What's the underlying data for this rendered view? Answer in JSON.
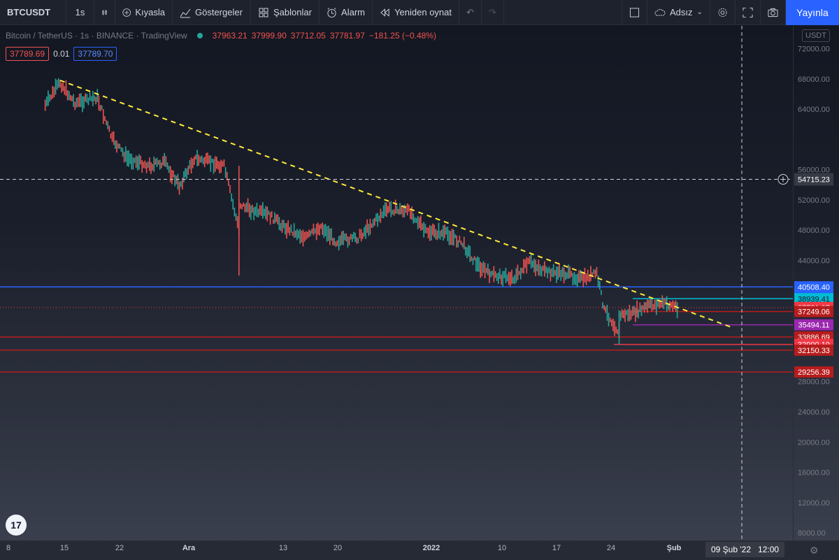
{
  "toolbar": {
    "symbol": "BTCUSDT",
    "interval": "1s",
    "compare_label": "Kıyasla",
    "indicators_label": "Göstergeler",
    "templates_label": "Şablonlar",
    "alarm_label": "Alarm",
    "replay_label": "Yeniden oynat",
    "layout_name": "Adsız",
    "publish_label": "Yayınla"
  },
  "legend": {
    "title": "Bitcoin / TetherUS · 1s · BINANCE · TradingView",
    "open": "37963.21",
    "high": "37999.90",
    "low": "37712.05",
    "close": "37781.97",
    "change": "−181.25 (−0.48%)"
  },
  "spread": {
    "sell": "37789.69",
    "spread": "0.01",
    "buy": "37789.70"
  },
  "currency_label": "USDT",
  "crosshair": {
    "price": "54715.23",
    "date": "09 Şub '22",
    "time": "12:00"
  },
  "price_axis": {
    "ticks": [
      "72000.00",
      "68000.00",
      "64000.00",
      "56000.00",
      "52000.00",
      "48000.00",
      "44000.00",
      "28000.00",
      "24000.00",
      "20000.00",
      "16000.00",
      "12000.00",
      "8000.00"
    ],
    "tick_values": [
      72000,
      68000,
      64000,
      56000,
      52000,
      48000,
      44000,
      28000,
      24000,
      20000,
      16000,
      12000,
      8000
    ]
  },
  "time_axis": {
    "labels": [
      "8",
      "15",
      "22",
      "Ara",
      "13",
      "20",
      "2022",
      "10",
      "17",
      "24",
      "Şub"
    ],
    "strong": [
      "Ara",
      "2022",
      "Şub"
    ]
  },
  "levels": [
    {
      "label": "40508.40",
      "value": 40508.4,
      "color": "#2962ff",
      "line": true,
      "start": "full"
    },
    {
      "label": "39349.69",
      "value": 39349.69,
      "color": "#2962ff",
      "line": false
    },
    {
      "label": "38939.41",
      "value": 38939.41,
      "color": "#00bcd4",
      "line": true,
      "start": "recent"
    },
    {
      "label": "37781.97",
      "value": 37781.97,
      "color": "#f23645",
      "line": false,
      "dotted": true
    },
    {
      "label": "37249.06",
      "value": 37249.06,
      "color": "#b71c1c",
      "line": true,
      "start": "recent"
    },
    {
      "label": "35494.11",
      "value": 35494.11,
      "color": "#9c27b0",
      "line": true,
      "start": "recent"
    },
    {
      "label": "33886.69",
      "value": 33886.69,
      "color": "#b71c1c",
      "line": true,
      "start": "full"
    },
    {
      "label": "32900.10",
      "value": 32900.1,
      "color": "#f23645",
      "line": true,
      "start": "recent2"
    },
    {
      "label": "32150.33",
      "value": 32150.33,
      "color": "#b71c1c",
      "line": true,
      "start": "full"
    },
    {
      "label": "29256.39",
      "value": 29256.39,
      "color": "#b71c1c",
      "line": true,
      "start": "full"
    }
  ],
  "chart_data": {
    "type": "line",
    "series": [
      {
        "name": "Bitcoin / TetherUS",
        "x": [
          "2021-11-08",
          "2021-11-10",
          "2021-11-12",
          "2021-11-15",
          "2021-11-17",
          "2021-11-19",
          "2021-11-22",
          "2021-11-24",
          "2021-11-26",
          "2021-11-28",
          "2021-11-30",
          "2021-12-02",
          "2021-12-04",
          "2021-12-04",
          "2021-12-06",
          "2021-12-08",
          "2021-12-10",
          "2021-12-13",
          "2021-12-15",
          "2021-12-17",
          "2021-12-20",
          "2021-12-22",
          "2021-12-24",
          "2021-12-27",
          "2021-12-29",
          "2022-01-01",
          "2022-01-03",
          "2022-01-05",
          "2022-01-07",
          "2022-01-10",
          "2022-01-12",
          "2022-01-14",
          "2022-01-17",
          "2022-01-19",
          "2022-01-21",
          "2022-01-22",
          "2022-01-24",
          "2022-01-24",
          "2022-01-26",
          "2022-01-28",
          "2022-01-30",
          "2022-02-01"
        ],
        "y": [
          64500,
          67500,
          64800,
          65500,
          60000,
          57500,
          56500,
          57000,
          53800,
          57500,
          57000,
          56500,
          48000,
          51500,
          50500,
          50000,
          48500,
          47000,
          48500,
          46500,
          47000,
          49000,
          50800,
          50500,
          47800,
          47500,
          46200,
          43400,
          42000,
          41700,
          43800,
          42500,
          42200,
          41500,
          42300,
          37500,
          34500,
          36800,
          37000,
          38000,
          38300,
          37782
        ],
        "values": [
          64500,
          67500,
          64800,
          65500,
          60000,
          57500,
          56500,
          57000,
          53800,
          57500,
          57000,
          56500,
          48000,
          51500,
          50500,
          50000,
          48500,
          47000,
          48500,
          46500,
          47000,
          49000,
          50800,
          50500,
          47800,
          47500,
          46200,
          43400,
          42000,
          41700,
          43800,
          42500,
          42200,
          41500,
          42300,
          37500,
          34500,
          36800,
          37000,
          38000,
          38300,
          37782
        ]
      }
    ],
    "ylim": [
      7000,
      75000
    ],
    "trendline": {
      "x": [
        "2021-11-10",
        "2022-02-08"
      ],
      "y": [
        67800,
        35200
      ],
      "color": "#ffeb3b",
      "dashed": true
    },
    "grid": false
  }
}
